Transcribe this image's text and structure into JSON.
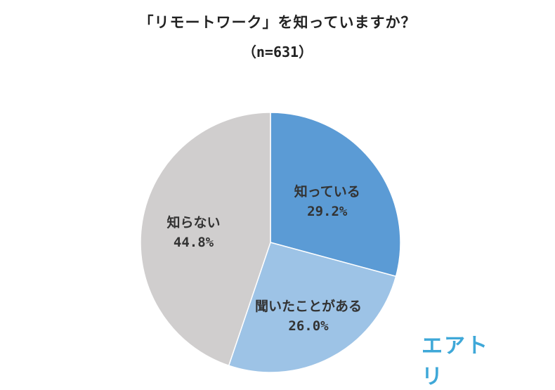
{
  "title": "「リモートワーク」を知っていますか？",
  "subtitle": "（n=631）",
  "logo": "エアトリ",
  "chart_data": {
    "type": "pie",
    "title": "「リモートワーク」を知っていますか？",
    "subtitle": "（n=631）",
    "start_angle_deg": 0,
    "direction": "clockwise",
    "slices": [
      {
        "label": "知っている",
        "value": 29.2,
        "value_label": "29.2%",
        "color": "#5b9bd5"
      },
      {
        "label": "聞いたことがある",
        "value": 26.0,
        "value_label": "26.0%",
        "color": "#9dc3e6"
      },
      {
        "label": "知らない",
        "value": 44.8,
        "value_label": "44.8%",
        "color": "#d0cece"
      }
    ]
  }
}
